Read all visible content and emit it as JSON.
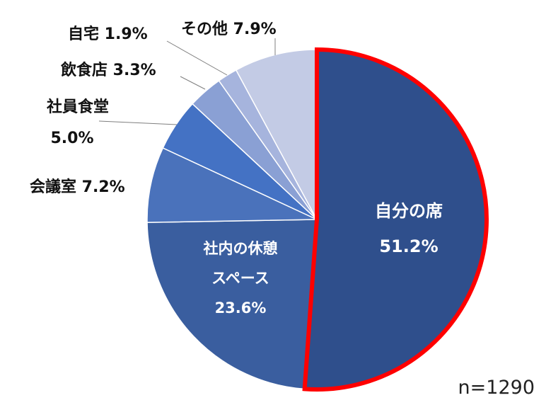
{
  "chart_data": {
    "type": "pie",
    "title": "",
    "sample_note": "n=1290",
    "slices": [
      {
        "label": "自分の席",
        "value": 51.2,
        "value_label": "51.2%",
        "color": "#2f4f8c",
        "highlight": true
      },
      {
        "label": "社内の休憩スペース",
        "label_lines": [
          "社内の休憩",
          "スペース"
        ],
        "value": 23.6,
        "value_label": "23.6%",
        "color": "#3a5e9f"
      },
      {
        "label": "会議室",
        "value": 7.2,
        "value_label": "7.2%",
        "color": "#4a72bb"
      },
      {
        "label": "社員食堂",
        "value": 5.0,
        "value_label": "5.0%",
        "color": "#4472c4"
      },
      {
        "label": "飲食店",
        "value": 3.3,
        "value_label": "3.3%",
        "color": "#8aa0d4"
      },
      {
        "label": "自宅",
        "value": 1.9,
        "value_label": "1.9%",
        "color": "#a6b4dd"
      },
      {
        "label": "その他",
        "value": 7.9,
        "value_label": "7.9%",
        "color": "#c3cbe5"
      }
    ],
    "highlight_color": "#ff0000"
  }
}
